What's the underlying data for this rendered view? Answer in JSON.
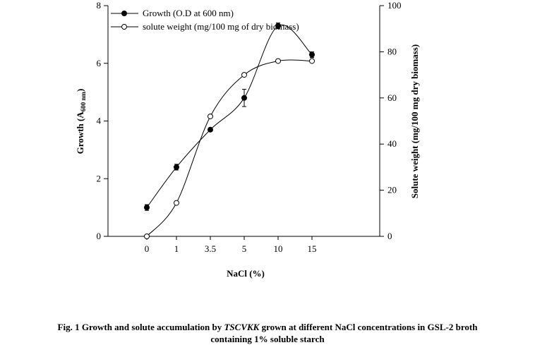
{
  "chart_data": {
    "type": "line",
    "categories": [
      "0",
      "1",
      "3.5",
      "5",
      "10",
      "15"
    ],
    "xlabel": "NaCl (%)",
    "ylabel_left": {
      "main": "Growth (A",
      "sub": "600 nm",
      "close": ")"
    },
    "ylabel_right": "Solute weight (mg/100 mg dry biomass)",
    "ylim_left": [
      0,
      8
    ],
    "ylim_right": [
      0,
      100
    ],
    "yticks_left": [
      0,
      2,
      4,
      6,
      8
    ],
    "yticks_right": [
      0,
      20,
      40,
      60,
      80,
      100
    ],
    "series": [
      {
        "name": "Growth (O.D at 600 nm)",
        "axis": "left",
        "marker": "filled-circle",
        "values": [
          1.0,
          2.4,
          3.7,
          4.8,
          7.3,
          6.3
        ],
        "errors": [
          0.1,
          0.1,
          0.05,
          0.3,
          0.1,
          0.1
        ]
      },
      {
        "name": "solute weight (mg/100 mg of dry biomass)",
        "axis": "right",
        "marker": "open-circle",
        "values": [
          0,
          14.5,
          52,
          70,
          76,
          76
        ]
      }
    ]
  },
  "caption": {
    "prefix": "Fig. 1 Growth and solute accumulation by ",
    "organism": "TSCVKK",
    "suffix": " grown at different NaCl concentrations in GSL-2 broth",
    "line2": "containing 1% soluble starch"
  }
}
